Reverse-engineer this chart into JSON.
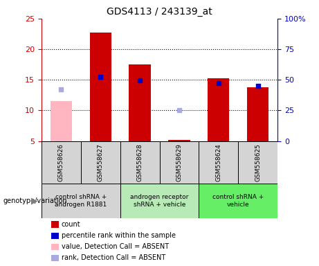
{
  "title": "GDS4113 / 243139_at",
  "samples": [
    "GSM558626",
    "GSM558627",
    "GSM558628",
    "GSM558629",
    "GSM558624",
    "GSM558625"
  ],
  "count_values": [
    null,
    22.7,
    17.5,
    5.2,
    15.2,
    13.8
  ],
  "count_absent_values": [
    11.5,
    null,
    null,
    null,
    null,
    null
  ],
  "rank_values": [
    null,
    52.5,
    49.5,
    null,
    47.5,
    45.0
  ],
  "rank_absent_values": [
    42.0,
    null,
    null,
    25.0,
    null,
    null
  ],
  "ylim_left": [
    5,
    25
  ],
  "ylim_right": [
    0,
    100
  ],
  "left_ticks": [
    5,
    10,
    15,
    20,
    25
  ],
  "right_ticks": [
    0,
    25,
    50,
    75,
    100
  ],
  "right_tick_labels": [
    "0",
    "25",
    "50",
    "75",
    "100%"
  ],
  "bar_width": 0.55,
  "group_info": [
    {
      "span": [
        0,
        1
      ],
      "label": "control shRNA +\nandrogen R1881",
      "color": "#d4d4d4"
    },
    {
      "span": [
        2,
        3
      ],
      "label": "androgen receptor\nshRNA + vehicle",
      "color": "#b8eab8"
    },
    {
      "span": [
        4,
        5
      ],
      "label": "control shRNA +\nvehicle",
      "color": "#66ee66"
    }
  ],
  "genotype_label": "genotype/variation",
  "legend_items": [
    {
      "label": "count",
      "color": "#cc0000"
    },
    {
      "label": "percentile rank within the sample",
      "color": "#0000cc"
    },
    {
      "label": "value, Detection Call = ABSENT",
      "color": "#ffb6c1"
    },
    {
      "label": "rank, Detection Call = ABSENT",
      "color": "#aaaadd"
    }
  ],
  "count_color": "#cc0000",
  "count_absent_color": "#ffb6c1",
  "rank_color": "#0000cc",
  "rank_absent_color": "#aaaadd",
  "bar_base": 5,
  "plot_bg": "#ffffff",
  "axis_color_left": "#cc0000",
  "axis_color_right": "#0000cc",
  "sample_box_color": "#d4d4d4",
  "grid_lines": [
    10,
    15,
    20
  ]
}
